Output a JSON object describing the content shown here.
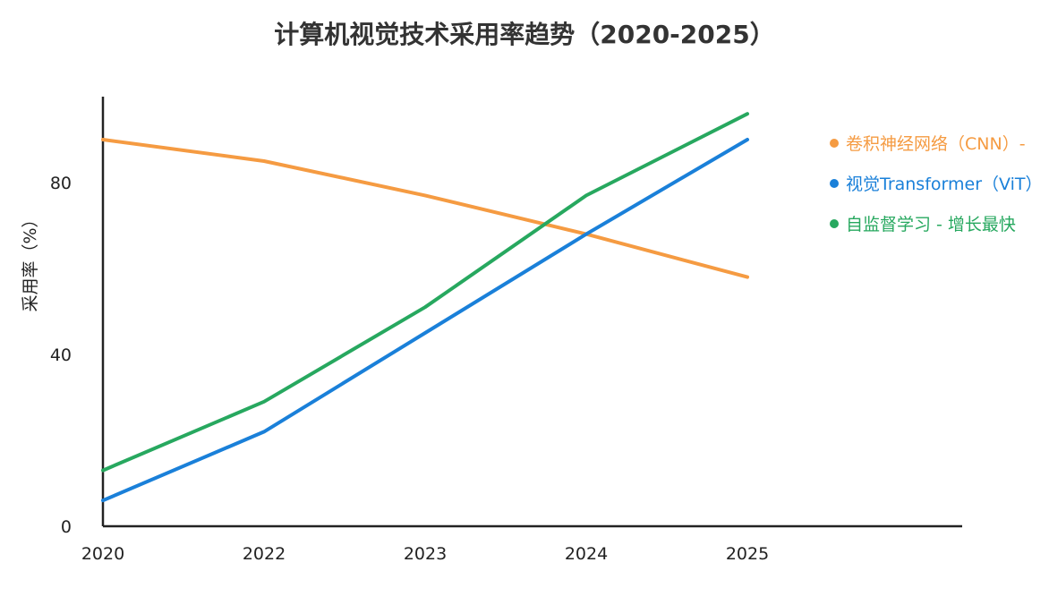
{
  "chart_data": {
    "type": "line",
    "title": "计算机视觉技术采用率趋势（2020-2025）",
    "xlabel": "",
    "ylabel": "采用率（%）",
    "categories": [
      "2020",
      "2022",
      "2023",
      "2024",
      "2025"
    ],
    "ylim": [
      0,
      100
    ],
    "yticks": [
      0,
      40,
      80
    ],
    "grid": false,
    "legend_position": "right",
    "series": [
      {
        "name": "卷积神经网络（CNN）- ",
        "color": "#f59b42",
        "values": [
          90,
          85,
          77,
          68,
          58
        ]
      },
      {
        "name": "视觉Transformer（ViT）",
        "color": "#1a80d9",
        "values": [
          6,
          22,
          45,
          68,
          90
        ]
      },
      {
        "name": "自监督学习 - 增长最快",
        "color": "#27a85f",
        "values": [
          13,
          29,
          51,
          77,
          96
        ]
      }
    ]
  }
}
